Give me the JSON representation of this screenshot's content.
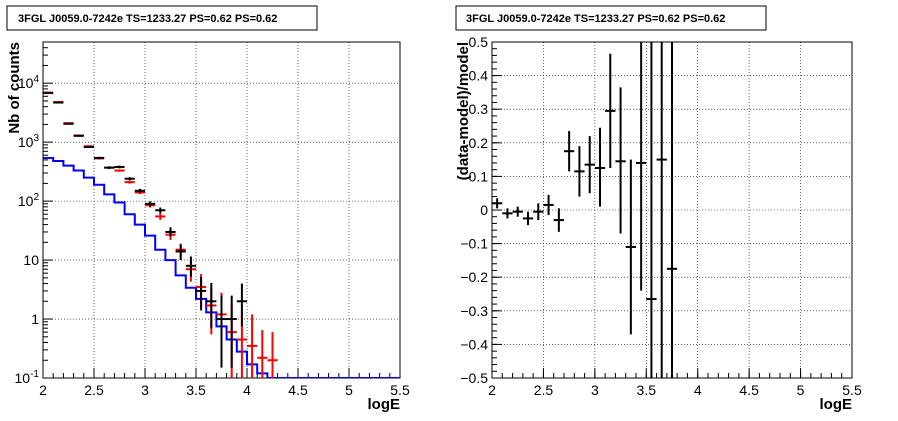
{
  "chart_data": [
    {
      "type": "line",
      "title": "3FGL J0059.0-7242e TS=1233.27 PS=0.62 PS=0.62",
      "xlabel": "logE",
      "ylabel": "Nb of counts",
      "xlim": [
        2,
        5.5
      ],
      "ylim": [
        0.1,
        50000
      ],
      "yscale": "log",
      "grid": true,
      "x_ticks": [
        "2",
        "2.5",
        "3",
        "3.5",
        "4",
        "4.5",
        "5",
        "5.5"
      ],
      "y_ticks": [
        {
          "value": 0.1,
          "label": "10",
          "exp": "-1"
        },
        {
          "value": 1,
          "label": "1",
          "exp": ""
        },
        {
          "value": 10,
          "label": "10",
          "exp": ""
        },
        {
          "value": 100,
          "label": "10",
          "exp": "2"
        },
        {
          "value": 1000,
          "label": "10",
          "exp": "3"
        },
        {
          "value": 10000,
          "label": "10",
          "exp": "4"
        }
      ],
      "bin_width": 0.1,
      "series": [
        {
          "color": "#0000ff",
          "style": "step",
          "x": [
            2.05,
            2.15,
            2.25,
            2.35,
            2.45,
            2.55,
            2.65,
            2.75,
            2.85,
            2.95,
            3.05,
            3.15,
            3.25,
            3.35,
            3.45,
            3.55,
            3.65,
            3.75,
            3.85,
            3.95,
            4.05,
            4.15,
            4.25,
            4.35,
            4.45,
            4.55,
            4.65,
            4.75,
            4.85,
            4.95,
            5.05,
            5.15,
            5.25,
            5.35,
            5.45
          ],
          "values": [
            540,
            480,
            400,
            330,
            250,
            190,
            130,
            95,
            60,
            40,
            26,
            15,
            10,
            5.5,
            3.4,
            2.2,
            1.3,
            0.75,
            0.45,
            0.28,
            0.17,
            0.12,
            0.1,
            0.1,
            0.1,
            0.1,
            0.1,
            0.1,
            0.1,
            0.1,
            0.1,
            0.1,
            0.1,
            0.1,
            0.1
          ]
        },
        {
          "color": "#ff0000",
          "style": "errorbar",
          "x": [
            2.05,
            2.15,
            2.25,
            2.35,
            2.45,
            2.55,
            2.65,
            2.75,
            2.85,
            2.95,
            3.05,
            3.15,
            3.25,
            3.35,
            3.45,
            3.55,
            3.65,
            3.75,
            3.85,
            3.95,
            4.05,
            4.15,
            4.25
          ],
          "values": [
            6800,
            4800,
            2100,
            1300,
            850,
            530,
            370,
            330,
            210,
            140,
            85,
            55,
            27,
            15,
            7,
            3.5,
            1.7,
            1.2,
            0.6,
            0.45,
            0.35,
            0.22,
            0.2
          ],
          "err_low": [
            6700,
            4700,
            2050,
            1260,
            820,
            510,
            355,
            315,
            198,
            132,
            78,
            48,
            22,
            11,
            4.3,
            1.6,
            0.55,
            0.2,
            0.1,
            0.1,
            0.1,
            0.1,
            0.1
          ],
          "err_high": [
            6900,
            4900,
            2150,
            1340,
            880,
            550,
            385,
            345,
            222,
            148,
            92,
            62,
            32,
            19,
            10,
            5.8,
            3.4,
            2.8,
            1.7,
            1.4,
            1.2,
            0.65,
            0.6
          ]
        },
        {
          "color": "#000000",
          "style": "errorbar",
          "x": [
            2.05,
            2.15,
            2.25,
            2.35,
            2.45,
            2.55,
            2.65,
            2.75,
            2.85,
            2.95,
            3.05,
            3.15,
            3.25,
            3.35,
            3.45,
            3.55,
            3.65,
            3.75,
            3.85,
            3.95
          ],
          "values": [
            6900,
            4700,
            2050,
            1280,
            830,
            540,
            370,
            380,
            240,
            150,
            90,
            70,
            30,
            14,
            8,
            3,
            2,
            1,
            1,
            2
          ],
          "err_low": [
            6800,
            4600,
            2000,
            1250,
            800,
            515,
            350,
            360,
            225,
            138,
            81,
            62,
            25,
            10,
            5.2,
            1.4,
            0.7,
            0.15,
            0.15,
            0.75
          ],
          "err_high": [
            7000,
            4800,
            2100,
            1310,
            860,
            565,
            390,
            400,
            255,
            162,
            99,
            78,
            36,
            18.5,
            11.5,
            5.2,
            4.1,
            2.5,
            2.5,
            4
          ]
        }
      ]
    },
    {
      "type": "scatter",
      "title": "3FGL J0059.0-7242e TS=1233.27 PS=0.62 PS=0.62",
      "xlabel": "logE",
      "ylabel": "(data-model)/model",
      "xlim": [
        2,
        5.5
      ],
      "ylim": [
        -0.5,
        0.5
      ],
      "grid": true,
      "x_ticks": [
        "2",
        "2.5",
        "3",
        "3.5",
        "4",
        "4.5",
        "5",
        "5.5"
      ],
      "y_ticks": [
        {
          "value": -0.5,
          "label": "−0.5"
        },
        {
          "value": -0.4,
          "label": "−0.4"
        },
        {
          "value": -0.3,
          "label": "−0.3"
        },
        {
          "value": -0.2,
          "label": "−0.2"
        },
        {
          "value": -0.1,
          "label": "−0.1"
        },
        {
          "value": 0,
          "label": "0"
        },
        {
          "value": 0.1,
          "label": "0.1"
        },
        {
          "value": 0.2,
          "label": "0.2"
        },
        {
          "value": 0.3,
          "label": "0.3"
        },
        {
          "value": 0.4,
          "label": "0.4"
        },
        {
          "value": 0.5,
          "label": "0.5"
        }
      ],
      "bin_width": 0.1,
      "series": [
        {
          "color": "#000000",
          "style": "errorbar",
          "x": [
            2.05,
            2.15,
            2.25,
            2.35,
            2.45,
            2.55,
            2.65,
            2.75,
            2.85,
            2.95,
            3.05,
            3.15,
            3.25,
            3.35,
            3.45,
            3.55,
            3.65,
            3.75
          ],
          "values": [
            0.02,
            -0.01,
            -0.005,
            -0.025,
            -0.005,
            0.015,
            -0.03,
            0.175,
            0.115,
            0.135,
            0.125,
            0.295,
            0.145,
            -0.11,
            0.14,
            -0.265,
            0.15,
            -0.175
          ],
          "err_low": [
            0.005,
            -0.025,
            -0.02,
            -0.045,
            -0.03,
            -0.015,
            -0.065,
            0.115,
            0.04,
            0.05,
            0.01,
            0.125,
            -0.07,
            -0.37,
            -0.24,
            -0.6,
            -0.6,
            -0.6
          ],
          "err_high": [
            0.035,
            0.005,
            0.01,
            -0.005,
            0.02,
            0.045,
            0.005,
            0.235,
            0.19,
            0.22,
            0.245,
            0.465,
            0.365,
            0.15,
            0.6,
            0.6,
            0.6,
            0.6
          ]
        }
      ]
    }
  ]
}
